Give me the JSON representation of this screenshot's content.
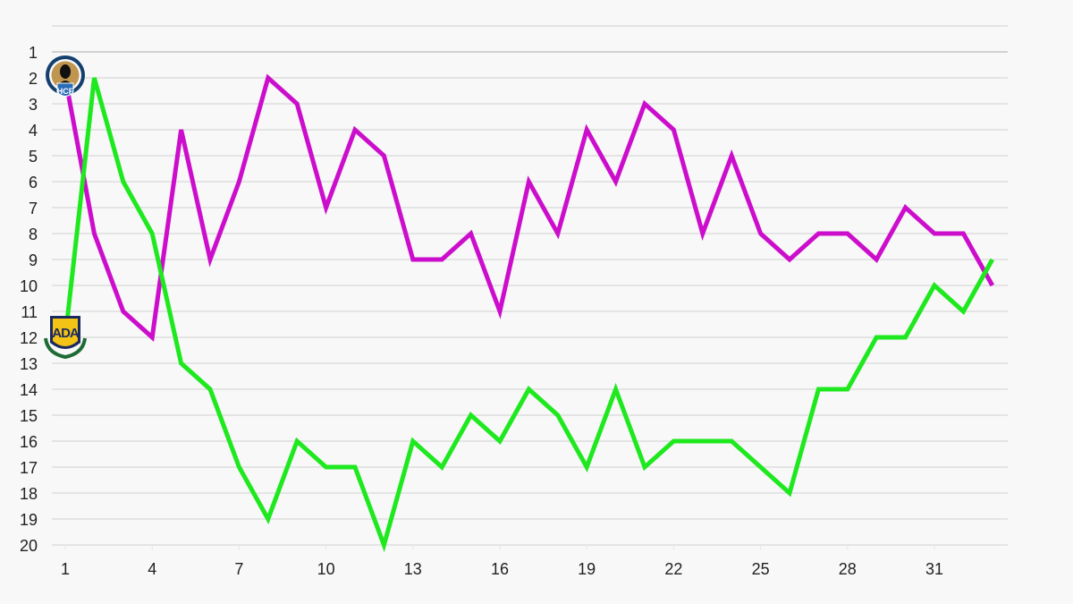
{
  "chart_data": {
    "type": "line",
    "title": "",
    "xlabel": "",
    "ylabel": "",
    "x": [
      1,
      2,
      3,
      4,
      5,
      6,
      7,
      8,
      9,
      10,
      11,
      12,
      13,
      14,
      15,
      16,
      17,
      18,
      19,
      20,
      21,
      22,
      23,
      24,
      25,
      26,
      27,
      28,
      29,
      30,
      31,
      32,
      33
    ],
    "x_tick_labels": [
      "1",
      "4",
      "7",
      "10",
      "13",
      "16",
      "19",
      "22",
      "25",
      "28",
      "31"
    ],
    "y_tick_labels": [
      "1",
      "2",
      "3",
      "4",
      "5",
      "6",
      "7",
      "8",
      "9",
      "10",
      "11",
      "12",
      "13",
      "14",
      "15",
      "16",
      "17",
      "18",
      "19",
      "20"
    ],
    "ylim": [
      20,
      0
    ],
    "y_inverted": true,
    "grid": true,
    "legend": "team crests at start of each line",
    "series": [
      {
        "name": "Hércules CF",
        "badge": "HCF",
        "color": "#cc0ecc",
        "values": [
          2,
          8,
          11,
          12,
          4,
          9,
          6,
          2,
          3,
          7,
          4,
          5,
          9,
          9,
          8,
          11,
          6,
          8,
          4,
          6,
          3,
          4,
          8,
          5,
          8,
          9,
          8,
          8,
          9,
          7,
          8,
          8,
          10
        ]
      },
      {
        "name": "AD Alcorcón",
        "badge": "ADA",
        "color": "#1ee81e",
        "values": [
          12,
          2,
          6,
          8,
          13,
          14,
          17,
          19,
          16,
          17,
          17,
          20,
          16,
          17,
          15,
          16,
          14,
          15,
          17,
          14,
          17,
          16,
          16,
          16,
          17,
          18,
          14,
          14,
          12,
          12,
          10,
          11,
          9
        ]
      }
    ]
  },
  "colors": {
    "background": "#f8f8f8",
    "grid": "#dedede",
    "axis_text": "#222222"
  }
}
